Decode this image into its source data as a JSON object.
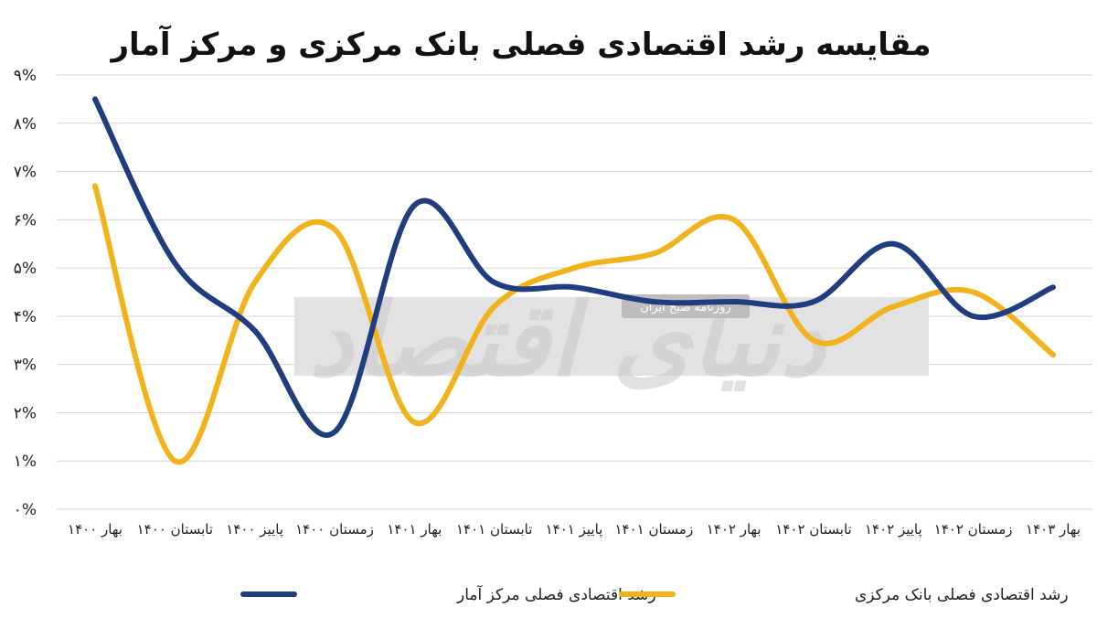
{
  "chart_data": {
    "type": "line",
    "title": "مقایسه رشد اقتصادی فصلی بانک مرکزی و مرکز آمار",
    "categories": [
      "بهار ۱۴۰۰",
      "تابستان ۱۴۰۰",
      "پاییز ۱۴۰۰",
      "زمستان ۱۴۰۰",
      "بهار ۱۴۰۱",
      "تابستان ۱۴۰۱",
      "پاییز ۱۴۰۱",
      "زمستان ۱۴۰۱",
      "بهار ۱۴۰۲",
      "تابستان ۱۴۰۲",
      "پاییز ۱۴۰۲",
      "زمستان ۱۴۰۲",
      "بهار ۱۴۰۳"
    ],
    "y_tick_labels": [
      "۰%",
      "۱%",
      "۲%",
      "۳%",
      "۴%",
      "۵%",
      "۶%",
      "۷%",
      "۸%",
      "۹%"
    ],
    "ylim": [
      0,
      9
    ],
    "grid": true,
    "legend_position": "bottom",
    "series": [
      {
        "name": "رشد اقتصادی فصلی مرکز آمار",
        "color": "#1f3d7f",
        "values": [
          8.5,
          5.1,
          3.7,
          1.6,
          6.3,
          4.7,
          4.6,
          4.3,
          4.3,
          4.3,
          5.5,
          4.0,
          4.6
        ]
      },
      {
        "name": "رشد اقتصادی فصلی بانک مرکزی",
        "color": "#f2b21c",
        "values": [
          6.7,
          1.0,
          4.7,
          5.8,
          1.8,
          4.2,
          5.0,
          5.3,
          6.0,
          3.5,
          4.2,
          4.5,
          3.2
        ]
      }
    ]
  },
  "watermark": {
    "main_text": "دنیای اقتصاد",
    "sub_text": "روزنامه صبح ایران"
  }
}
